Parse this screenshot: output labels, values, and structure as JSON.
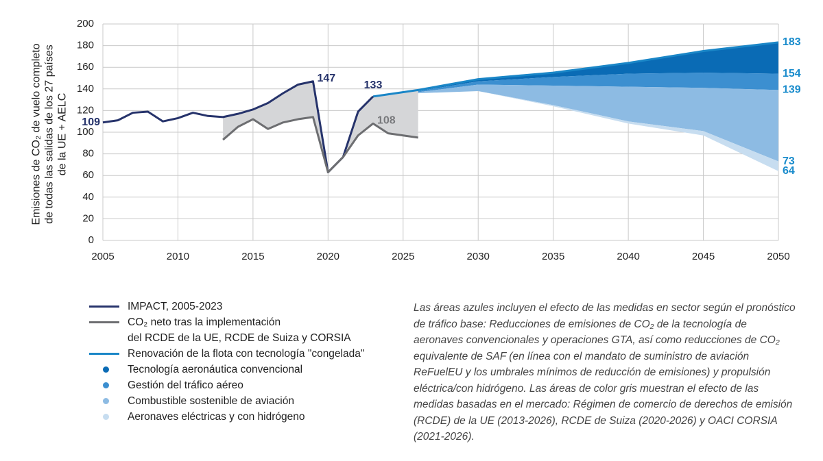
{
  "chart_data": {
    "type": "line",
    "y_label": "Emisiones de CO₂ de vuelo completo\nde todas las salidas de los 27 países\nde la UE + AELC",
    "xlim": [
      2005,
      2050
    ],
    "xticks": [
      2005,
      2010,
      2015,
      2020,
      2025,
      2030,
      2035,
      2040,
      2045,
      2050
    ],
    "ylim": [
      0,
      200
    ],
    "yticks": [
      0,
      20,
      40,
      60,
      80,
      100,
      120,
      140,
      160,
      180,
      200
    ],
    "grid": true,
    "market_area_color": "#d5d6d8",
    "series": [
      {
        "name": "IMPACT, 2005-2023",
        "color": "#26336b",
        "style": "line",
        "label_color": "#26336b",
        "label_points": [
          0,
          14,
          18
        ],
        "x": [
          2005,
          2006,
          2007,
          2008,
          2009,
          2010,
          2011,
          2012,
          2013,
          2014,
          2015,
          2016,
          2017,
          2018,
          2019,
          2020,
          2021,
          2022,
          2023
        ],
        "values": [
          109,
          111,
          118,
          119,
          110,
          113,
          118,
          115,
          114,
          117,
          121,
          127,
          136,
          144,
          147,
          63,
          77,
          119,
          133
        ]
      },
      {
        "name": "CO₂ neto tras la implementación\ndel RCDE de la UE, RCDE de Suiza y CORSIA",
        "color": "#6d6e71",
        "style": "line",
        "label_color": "#77787b",
        "label_points": [
          10
        ],
        "x": [
          2013,
          2014,
          2015,
          2016,
          2017,
          2018,
          2019,
          2020,
          2021,
          2022,
          2023,
          2024,
          2025,
          2026
        ],
        "values": [
          93,
          105,
          112,
          103,
          109,
          112,
          114,
          63,
          77,
          97,
          108,
          99,
          97,
          95
        ]
      },
      {
        "name": "Renovación de la flota con tecnología \"congelada\"",
        "color": "#1a86c7",
        "style": "line",
        "label_color": "#1a8ccc",
        "label_points": [
          6
        ],
        "x": [
          2023,
          2026,
          2030,
          2035,
          2040,
          2045,
          2050
        ],
        "values": [
          133,
          139,
          149,
          155,
          164,
          175,
          183
        ]
      },
      {
        "name": "Tecnología aeronáutica convencional",
        "color": "#0a6bb5",
        "style": "band",
        "label_color": "#1a8ccc",
        "label_points": [
          6
        ],
        "x": [
          2023,
          2026,
          2030,
          2035,
          2040,
          2045,
          2050
        ],
        "values": [
          133,
          138,
          147,
          151,
          154,
          155,
          154
        ]
      },
      {
        "name": "Gestión del tráfico aéreo",
        "color": "#3c8fd0",
        "style": "band",
        "label_color": "#1a8ccc",
        "label_points": [
          6
        ],
        "x": [
          2023,
          2026,
          2030,
          2035,
          2040,
          2045,
          2050
        ],
        "values": [
          133,
          137,
          144,
          143,
          142,
          141,
          139
        ]
      },
      {
        "name": "Combustible sostenible de aviación",
        "color": "#8dbbe3",
        "style": "band",
        "label_color": "#1a8ccc",
        "label_points": [
          6
        ],
        "x": [
          2023,
          2026,
          2030,
          2035,
          2040,
          2045,
          2050
        ],
        "values": [
          133,
          136,
          138,
          125,
          110,
          101,
          73
        ]
      },
      {
        "name": "Aeronaves eléctricas y con hidrógeno",
        "color": "#c7ddf0",
        "style": "band",
        "label_color": "#1a8ccc",
        "label_points": [
          6
        ],
        "x": [
          2023,
          2026,
          2030,
          2035,
          2040,
          2045,
          2050
        ],
        "values": [
          133,
          136,
          138,
          124,
          108,
          97,
          64
        ]
      }
    ],
    "note": "Las áreas azules incluyen el efecto de las medidas en sector según el pronóstico de tráfico base: Reducciones de emisiones de CO₂ de la tecnología de aeronaves convencionales y operaciones GTA, así como reducciones de CO₂ equivalente de SAF (en línea con el mandato de suministro de aviación ReFuelEU y los umbrales mínimos de reducción de emisiones) y propulsión eléctrica/con hidrógeno. Las áreas de color gris muestran el efecto de las medidas basadas en el mercado: Régimen de comercio de derechos de emisión (RCDE) de la UE (2013-2026), RCDE de Suiza (2020-2026) y OACI CORSIA (2021-2026)."
  }
}
